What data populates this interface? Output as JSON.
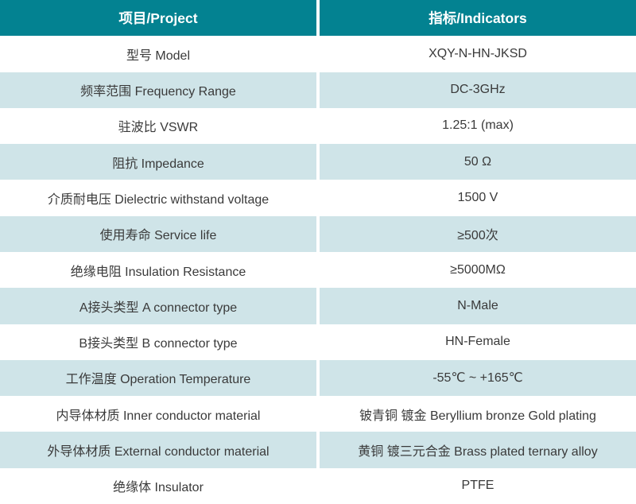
{
  "table": {
    "header": {
      "project": "项目/Project",
      "indicators": "指标/Indicators"
    },
    "rows": [
      {
        "project": "型号 Model",
        "indicator": "XQY-N-HN-JKSD"
      },
      {
        "project": "频率范围 Frequency Range",
        "indicator": "DC-3GHz"
      },
      {
        "project": "驻波比 VSWR",
        "indicator": "1.25:1 (max)"
      },
      {
        "project": "阻抗 Impedance",
        "indicator": "50 Ω"
      },
      {
        "project": "介质耐电压 Dielectric withstand voltage",
        "indicator": "1500 V"
      },
      {
        "project": "使用寿命 Service life",
        "indicator": "≥500次"
      },
      {
        "project": "绝缘电阻 Insulation Resistance",
        "indicator": "≥5000MΩ"
      },
      {
        "project": "A接头类型 A connector type",
        "indicator": "N-Male"
      },
      {
        "project": "B接头类型 B connector type",
        "indicator": "HN-Female"
      },
      {
        "project": "工作温度 Operation Temperature",
        "indicator": "-55℃ ~ +165℃"
      },
      {
        "project": "内导体材质 Inner conductor material",
        "indicator": "铍青铜 镀金 Beryllium bronze Gold plating"
      },
      {
        "project": "外导体材质 External conductor material",
        "indicator": "黄铜 镀三元合金 Brass plated ternary alloy"
      },
      {
        "project": "绝缘体 Insulator",
        "indicator": "PTFE"
      }
    ],
    "colors": {
      "header_bg": "#038291",
      "header_text": "#ffffff",
      "row_bg": "#ffffff",
      "row_alt_bg": "#cfe4e8",
      "text": "#3a3a3a",
      "divider": "#ffffff"
    }
  }
}
